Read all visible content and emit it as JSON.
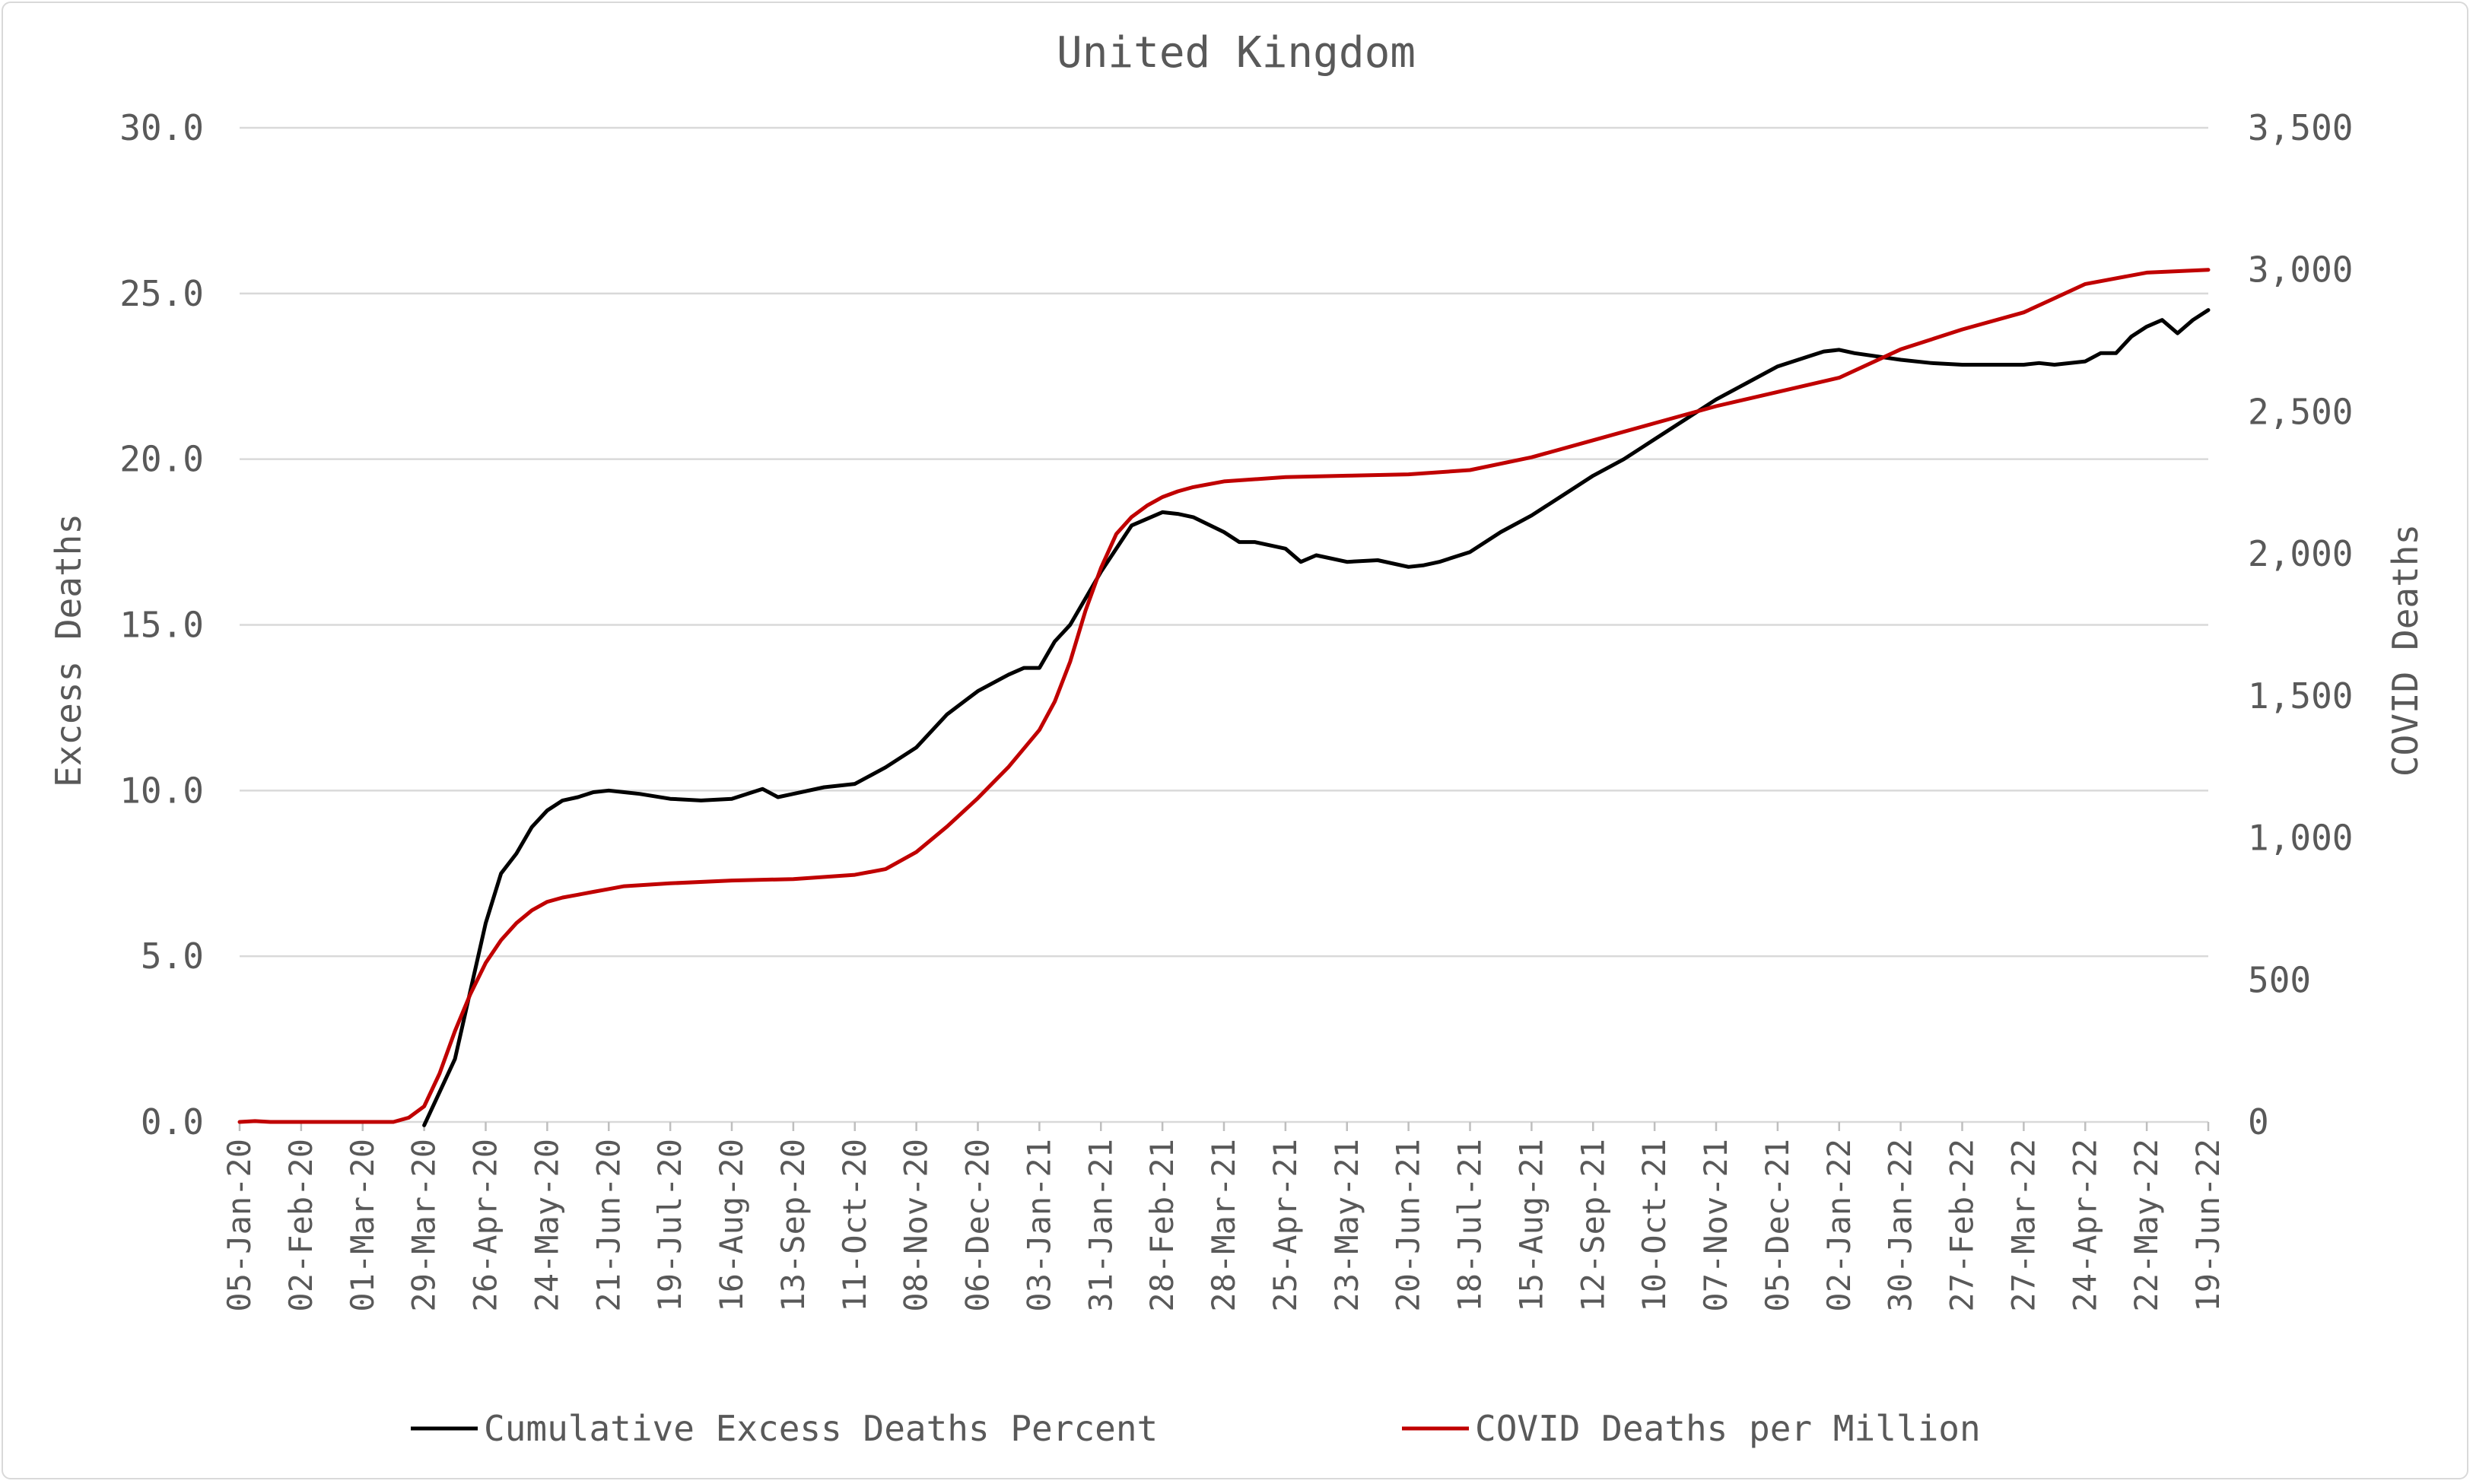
{
  "chart_data": {
    "type": "line",
    "title": "United Kingdom",
    "ylabel": "Excess Deaths",
    "y2label": "COVID Deaths",
    "ylim": [
      0,
      30
    ],
    "y2lim": [
      0,
      3500
    ],
    "yticks": [
      "0.0",
      "5.0",
      "10.0",
      "15.0",
      "20.0",
      "25.0",
      "30.0"
    ],
    "y2ticks": [
      "0",
      "500",
      "1,000",
      "1,500",
      "2,000",
      "2,500",
      "3,000",
      "3,500"
    ],
    "grid": true,
    "legend_position": "bottom",
    "x_tick_labels": [
      "05-Jan-20",
      "02-Feb-20",
      "01-Mar-20",
      "29-Mar-20",
      "26-Apr-20",
      "24-May-20",
      "21-Jun-20",
      "19-Jul-20",
      "16-Aug-20",
      "13-Sep-20",
      "11-Oct-20",
      "08-Nov-20",
      "06-Dec-20",
      "03-Jan-21",
      "31-Jan-21",
      "28-Feb-21",
      "28-Mar-21",
      "25-Apr-21",
      "23-May-21",
      "20-Jun-21",
      "18-Jul-21",
      "15-Aug-21",
      "12-Sep-21",
      "10-Oct-21",
      "07-Nov-21",
      "05-Dec-21",
      "02-Jan-22",
      "30-Jan-22",
      "27-Feb-22",
      "27-Mar-22",
      "24-Apr-22",
      "22-May-22",
      "19-Jun-22"
    ],
    "series": [
      {
        "name": "Cumulative Excess Deaths Percent",
        "color": "#000000",
        "axis": "left",
        "x": [
          "29-Mar-20",
          "12-Apr-20",
          "26-Apr-20",
          "03-May-20",
          "10-May-20",
          "17-May-20",
          "24-May-20",
          "31-May-20",
          "07-Jun-20",
          "14-Jun-20",
          "21-Jun-20",
          "28-Jun-20",
          "05-Jul-20",
          "19-Jul-20",
          "02-Aug-20",
          "16-Aug-20",
          "30-Aug-20",
          "06-Sep-20",
          "13-Sep-20",
          "27-Sep-20",
          "11-Oct-20",
          "25-Oct-20",
          "08-Nov-20",
          "22-Nov-20",
          "06-Dec-20",
          "20-Dec-20",
          "27-Dec-20",
          "03-Jan-21",
          "10-Jan-21",
          "17-Jan-21",
          "31-Jan-21",
          "14-Feb-21",
          "28-Feb-21",
          "07-Mar-21",
          "14-Mar-21",
          "28-Mar-21",
          "04-Apr-21",
          "11-Apr-21",
          "25-Apr-21",
          "02-May-21",
          "09-May-21",
          "23-May-21",
          "06-Jun-21",
          "20-Jun-21",
          "27-Jun-21",
          "04-Jul-21",
          "18-Jul-21",
          "01-Aug-21",
          "15-Aug-21",
          "29-Aug-21",
          "12-Sep-21",
          "26-Sep-21",
          "10-Oct-21",
          "24-Oct-21",
          "07-Nov-21",
          "21-Nov-21",
          "05-Dec-21",
          "19-Dec-21",
          "26-Dec-21",
          "02-Jan-22",
          "09-Jan-22",
          "30-Jan-22",
          "13-Feb-22",
          "27-Feb-22",
          "06-Mar-22",
          "13-Mar-22",
          "27-Mar-22",
          "03-Apr-22",
          "10-Apr-22",
          "24-Apr-22",
          "01-May-22",
          "08-May-22",
          "15-May-22",
          "22-May-22",
          "29-May-22",
          "05-Jun-22",
          "12-Jun-22",
          "19-Jun-22"
        ],
        "values": [
          -0.1,
          1.9,
          6.0,
          7.5,
          8.1,
          8.9,
          9.4,
          9.7,
          9.8,
          9.95,
          10.0,
          9.95,
          9.9,
          9.75,
          9.7,
          9.75,
          10.05,
          9.8,
          9.9,
          10.1,
          10.2,
          10.7,
          11.3,
          12.3,
          13.0,
          13.5,
          13.7,
          13.7,
          14.5,
          15.0,
          16.6,
          18.0,
          18.4,
          18.35,
          18.25,
          17.8,
          17.5,
          17.5,
          17.3,
          16.9,
          17.1,
          16.9,
          16.95,
          16.75,
          16.8,
          16.9,
          17.2,
          17.8,
          18.3,
          18.9,
          19.5,
          20.0,
          20.6,
          21.2,
          21.8,
          22.3,
          22.8,
          23.1,
          23.25,
          23.3,
          23.2,
          23.0,
          22.9,
          22.85,
          22.85,
          22.85,
          22.85,
          22.9,
          22.85,
          22.95,
          23.2,
          23.2,
          23.7,
          24.0,
          24.2,
          23.8,
          24.2,
          24.5
        ]
      },
      {
        "name": "COVID Deaths per Million",
        "color": "#c00000",
        "axis": "right",
        "x": [
          "05-Jan-20",
          "12-Jan-20",
          "19-Jan-20",
          "26-Jan-20",
          "02-Feb-20",
          "01-Mar-20",
          "15-Mar-20",
          "22-Mar-20",
          "29-Mar-20",
          "05-Apr-20",
          "12-Apr-20",
          "19-Apr-20",
          "26-Apr-20",
          "03-May-20",
          "10-May-20",
          "17-May-20",
          "24-May-20",
          "31-May-20",
          "07-Jun-20",
          "14-Jun-20",
          "21-Jun-20",
          "28-Jun-20",
          "19-Jul-20",
          "16-Aug-20",
          "13-Sep-20",
          "11-Oct-20",
          "25-Oct-20",
          "08-Nov-20",
          "22-Nov-20",
          "06-Dec-20",
          "20-Dec-20",
          "03-Jan-21",
          "10-Jan-21",
          "17-Jan-21",
          "24-Jan-21",
          "31-Jan-21",
          "07-Feb-21",
          "14-Feb-21",
          "21-Feb-21",
          "28-Feb-21",
          "07-Mar-21",
          "14-Mar-21",
          "28-Mar-21",
          "25-Apr-21",
          "23-May-21",
          "20-Jun-21",
          "18-Jul-21",
          "15-Aug-21",
          "12-Sep-21",
          "10-Oct-21",
          "07-Nov-21",
          "05-Dec-21",
          "02-Jan-22",
          "30-Jan-22",
          "27-Feb-22",
          "27-Mar-22",
          "10-Apr-22",
          "24-Apr-22",
          "22-May-22",
          "19-Jun-22"
        ],
        "values": [
          0,
          3,
          0,
          0,
          0,
          0,
          0,
          15,
          55,
          170,
          320,
          450,
          560,
          640,
          700,
          745,
          775,
          790,
          800,
          810,
          820,
          830,
          840,
          850,
          855,
          870,
          890,
          950,
          1040,
          1140,
          1250,
          1380,
          1480,
          1620,
          1800,
          1950,
          2070,
          2130,
          2170,
          2200,
          2220,
          2235,
          2255,
          2270,
          2275,
          2280,
          2295,
          2340,
          2400,
          2460,
          2520,
          2570,
          2620,
          2720,
          2790,
          2850,
          2900,
          2950,
          2990,
          3000
        ]
      }
    ]
  }
}
